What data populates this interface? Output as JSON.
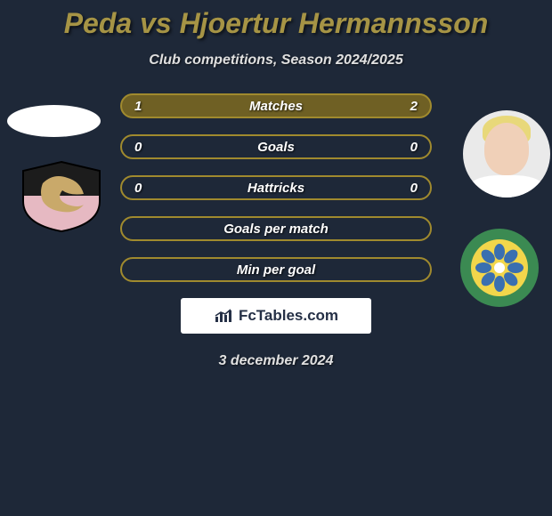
{
  "title_color": "#a69445",
  "player_a": "Peda",
  "vs": "vs",
  "player_b": "Hjoertur Hermannsson",
  "subtitle": "Club competitions, Season 2024/2025",
  "stats": [
    {
      "label": "Matches",
      "a": "1",
      "b": "2",
      "border": "#a08a2e",
      "fill": "#6f6024"
    },
    {
      "label": "Goals",
      "a": "0",
      "b": "0",
      "border": "#a08a2e",
      "fill": "transparent"
    },
    {
      "label": "Hattricks",
      "a": "0",
      "b": "0",
      "border": "#a08a2e",
      "fill": "transparent"
    },
    {
      "label": "Goals per match",
      "a": "",
      "b": "",
      "border": "#a08a2e",
      "fill": "transparent"
    },
    {
      "label": "Min per goal",
      "a": "",
      "b": "",
      "border": "#a08a2e",
      "fill": "transparent"
    }
  ],
  "watermark": "FcTables.com",
  "date": "3 december 2024",
  "club_left": {
    "bg_top": "#1c1c1c",
    "bg_bottom": "#e6b9c2",
    "bird": "#c9a96a"
  },
  "club_right": {
    "outer": "#3b8a52",
    "inner": "#f2d64b",
    "flower": "#3a6fb0"
  }
}
